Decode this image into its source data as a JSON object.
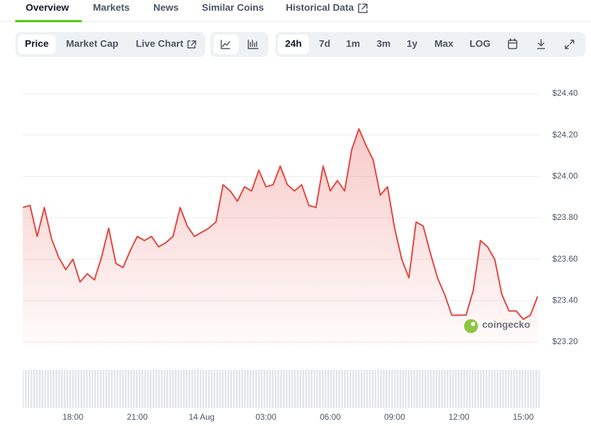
{
  "tabs": [
    {
      "label": "Overview",
      "active": true
    },
    {
      "label": "Markets"
    },
    {
      "label": "News"
    },
    {
      "label": "Similar Coins"
    },
    {
      "label": "Historical Data"
    }
  ],
  "view_buttons": [
    {
      "label": "Price",
      "active": true
    },
    {
      "label": "Market Cap"
    },
    {
      "label": "Live Chart"
    }
  ],
  "range_buttons": [
    {
      "label": "24h",
      "active": true
    },
    {
      "label": "7d"
    },
    {
      "label": "1m"
    },
    {
      "label": "3m"
    },
    {
      "label": "1y"
    },
    {
      "label": "Max"
    },
    {
      "label": "LOG"
    }
  ],
  "chart_data": {
    "type": "line",
    "color": "#e5443d",
    "grid": true,
    "watermark": "coingecko",
    "categories": [
      null,
      null,
      null,
      null,
      null,
      null,
      null,
      "18:00",
      null,
      null,
      null,
      null,
      null,
      null,
      null,
      null,
      "21:00",
      null,
      null,
      null,
      null,
      null,
      null,
      null,
      null,
      "14 Aug",
      null,
      null,
      null,
      null,
      null,
      null,
      null,
      null,
      "03:00",
      null,
      null,
      null,
      null,
      null,
      null,
      null,
      null,
      "06:00",
      null,
      null,
      null,
      null,
      null,
      null,
      null,
      null,
      "09:00",
      null,
      null,
      null,
      null,
      null,
      null,
      null,
      null,
      "12:00",
      null,
      null,
      null,
      null,
      null,
      null,
      null,
      null,
      "15:00",
      null,
      null
    ],
    "values": [
      23.85,
      23.86,
      23.71,
      23.85,
      23.7,
      23.61,
      23.55,
      23.6,
      23.49,
      23.53,
      23.5,
      23.61,
      23.75,
      23.58,
      23.56,
      23.64,
      23.71,
      23.69,
      23.71,
      23.66,
      23.68,
      23.71,
      23.85,
      23.76,
      23.71,
      23.73,
      23.75,
      23.78,
      23.96,
      23.93,
      23.88,
      23.95,
      23.93,
      24.03,
      23.95,
      23.96,
      24.05,
      23.96,
      23.93,
      23.96,
      23.86,
      23.85,
      24.05,
      23.93,
      23.98,
      23.93,
      24.13,
      24.23,
      24.15,
      24.08,
      23.91,
      23.95,
      23.75,
      23.6,
      23.51,
      23.78,
      23.76,
      23.63,
      23.51,
      23.43,
      23.33,
      23.33,
      23.33,
      23.45,
      23.69,
      23.66,
      23.6,
      23.43,
      23.35,
      23.35,
      23.31,
      23.33,
      23.42
    ],
    "ylim": [
      23.2,
      24.4
    ],
    "yticks": [
      {
        "value": 23.2,
        "label": "$23.20"
      },
      {
        "value": 23.4,
        "label": "$23.40"
      },
      {
        "value": 23.6,
        "label": "$23.60"
      },
      {
        "value": 23.8,
        "label": "$23.80"
      },
      {
        "value": 24.0,
        "label": "$24.00"
      },
      {
        "value": 24.2,
        "label": "$24.20"
      },
      {
        "value": 24.4,
        "label": "$24.40"
      }
    ]
  }
}
